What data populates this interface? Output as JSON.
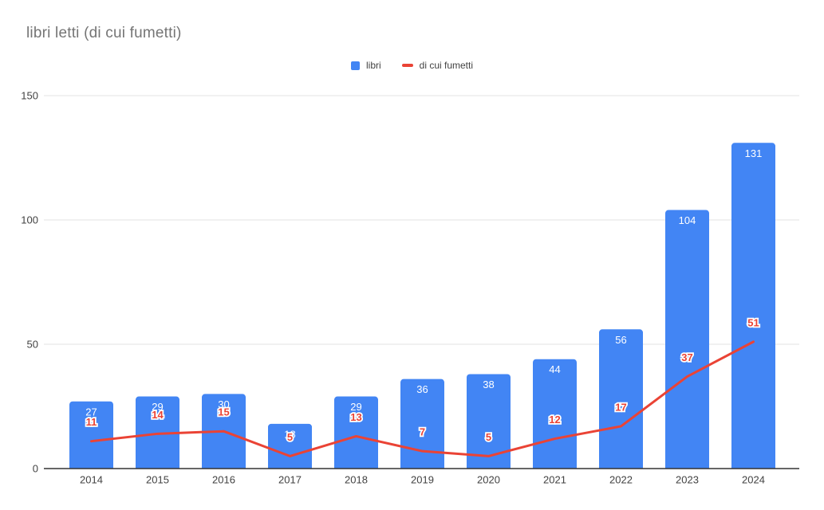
{
  "title": "libri letti (di cui fumetti)",
  "legend": [
    {
      "label": "libri",
      "swatch": "square-icon",
      "color": "#4285f4"
    },
    {
      "label": "di cui fumetti",
      "swatch": "dash-icon",
      "color": "#ea4335"
    }
  ],
  "colors": {
    "bar": "#4285f4",
    "line": "#ea4335",
    "bar_label": "#ffffff",
    "line_label_fill": "#ea4335",
    "line_label_outline": "#ffffff",
    "title_text": "#757575",
    "axis_text": "#424242",
    "gridline": "#e3e3e3",
    "axis_line": "#333333",
    "background": "#ffffff"
  },
  "chart_data": {
    "type": "combo-bar-line",
    "title": "libri letti (di cui fumetti)",
    "categories": [
      "2014",
      "2015",
      "2016",
      "2017",
      "2018",
      "2019",
      "2020",
      "2021",
      "2022",
      "2023",
      "2024"
    ],
    "series": [
      {
        "name": "libri",
        "type": "bar",
        "color": "#4285f4",
        "values": [
          27,
          29,
          30,
          18,
          29,
          36,
          38,
          44,
          56,
          104,
          131
        ]
      },
      {
        "name": "di cui fumetti",
        "type": "line",
        "color": "#ea4335",
        "values": [
          11,
          14,
          15,
          5,
          13,
          7,
          5,
          12,
          17,
          37,
          51
        ]
      }
    ],
    "xlabel": "",
    "ylabel": "",
    "y_ticks": [
      0,
      50,
      100,
      150
    ],
    "ylim": [
      0,
      150
    ],
    "grid": true,
    "legend_position": "top",
    "data_labels": "shown"
  }
}
